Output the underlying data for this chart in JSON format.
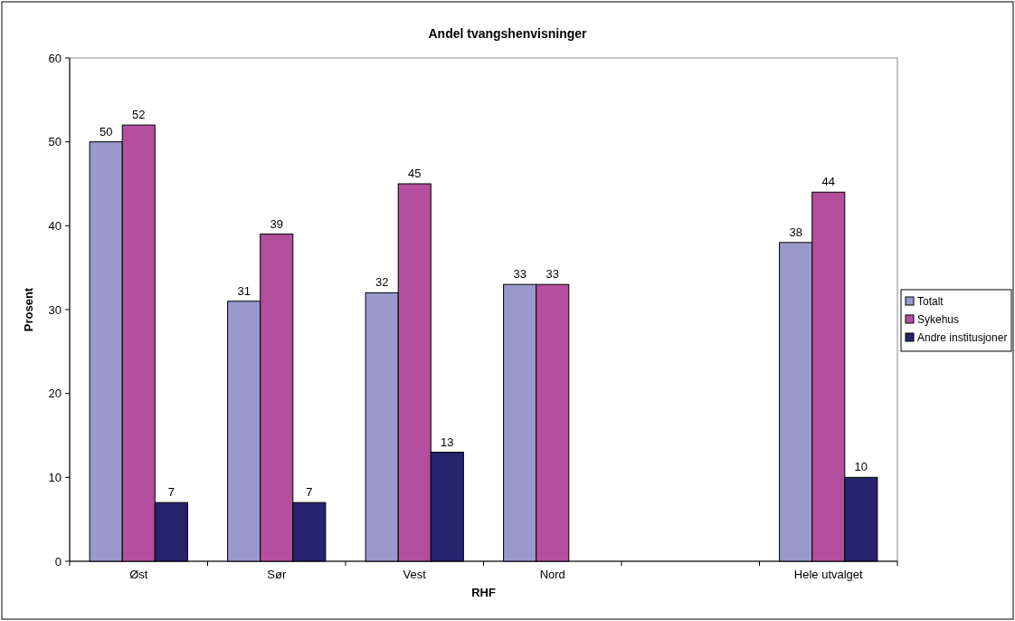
{
  "chart_data": {
    "type": "bar",
    "title": "Andel tvangshenvisninger",
    "xlabel": "RHF",
    "ylabel": "Prosent",
    "categories": [
      "Øst",
      "Sør",
      "Vest",
      "Nord",
      null,
      "Hele utvalget"
    ],
    "series": [
      {
        "name": "Totalt",
        "color": "#9999cc",
        "values": [
          50,
          31,
          32,
          33,
          null,
          38
        ]
      },
      {
        "name": "Sykehus",
        "color": "#b44e9f",
        "values": [
          52,
          39,
          45,
          33,
          null,
          44
        ]
      },
      {
        "name": "Andre institusjoner",
        "color": "#26246c",
        "values": [
          7,
          7,
          13,
          null,
          null,
          10
        ]
      }
    ],
    "ylim": [
      0,
      60
    ],
    "yticks": [
      0,
      10,
      20,
      30,
      40,
      50,
      60
    ],
    "data_labels": true,
    "legend": "right",
    "grid": false
  }
}
